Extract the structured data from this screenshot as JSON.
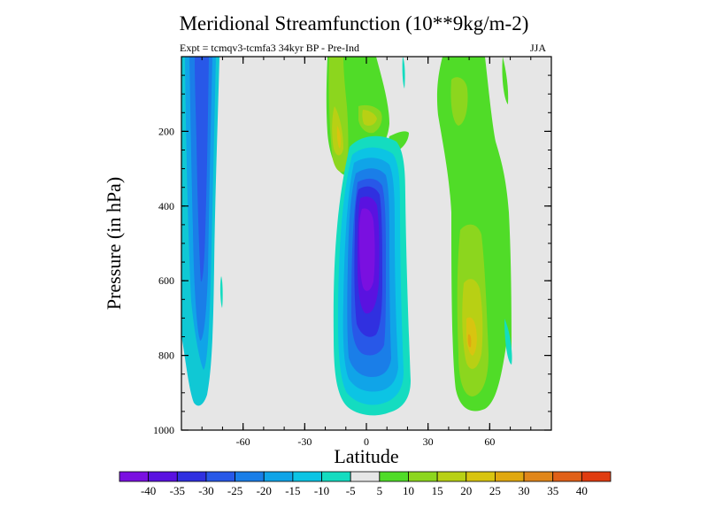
{
  "chart_data": {
    "type": "heatmap",
    "title": "Meridional Streamfunction (10**9kg/m-2)",
    "subtitle": "Expt = tcmqv3-tcmfa3    34kyr BP - Pre-Ind",
    "season": "JJA",
    "xlabel": "Latitude",
    "ylabel": "Pressure (in hPa)",
    "xlim": [
      -90,
      90
    ],
    "ylim": [
      1000,
      0
    ],
    "xticks": [
      -60,
      -30,
      0,
      30,
      60
    ],
    "xtick_labels": [
      "-60",
      "-30",
      "0",
      "30",
      "60"
    ],
    "yticks": [
      200,
      400,
      600,
      800,
      1000
    ],
    "ytick_labels": [
      "200",
      "400",
      "600",
      "800",
      "1000"
    ],
    "background_color": "#e6e6e6",
    "colorbar": {
      "boundary_labels": [
        "-40",
        "-35",
        "-30",
        "-25",
        "-20",
        "-15",
        "-10",
        "-5",
        "5",
        "10",
        "15",
        "20",
        "25",
        "30",
        "35",
        "40"
      ],
      "colors": [
        "#7a10e0",
        "#5a12e0",
        "#3030e0",
        "#2858e8",
        "#1a7ee8",
        "#10a4e8",
        "#0cc4e4",
        "#14dcc0",
        "#e6e6e6",
        "#50dc28",
        "#8cd61e",
        "#b8d014",
        "#d8c410",
        "#e0a810",
        "#e0861a",
        "#e06018",
        "#e03c10"
      ]
    },
    "features": [
      {
        "sign": "negative",
        "lat": -78,
        "pressure_range": [
          0,
          940
        ],
        "min_level": -30
      },
      {
        "sign": "negative",
        "lat": 0,
        "pressure_range": [
          250,
          960
        ],
        "min_level": -40
      },
      {
        "sign": "positive",
        "lat": -12,
        "pressure_range": [
          0,
          260
        ],
        "max_level": 20
      },
      {
        "sign": "positive",
        "lat": 50,
        "pressure_range": [
          0,
          960
        ],
        "max_level": 20
      }
    ]
  }
}
